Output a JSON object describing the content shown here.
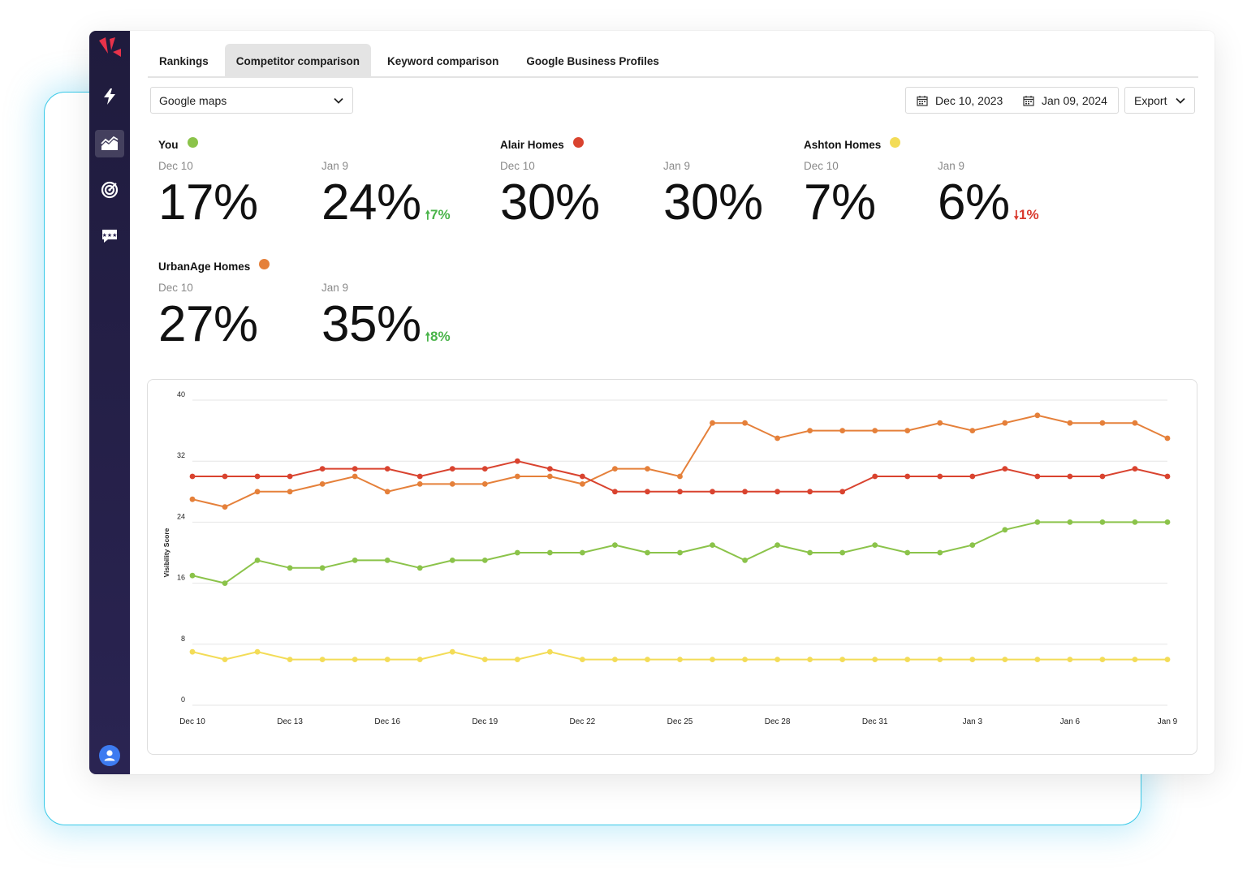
{
  "tabs": [
    {
      "label": "Rankings",
      "active": false
    },
    {
      "label": "Competitor comparison",
      "active": true
    },
    {
      "label": "Keyword comparison",
      "active": false
    },
    {
      "label": "Google Business Profiles",
      "active": false
    }
  ],
  "filters": {
    "source": "Google maps",
    "start_date": "Dec 10, 2023",
    "end_date": "Jan 09, 2024",
    "export_label": "Export"
  },
  "sidebar_icons": [
    "logo-icon",
    "lightning-icon",
    "chart-icon",
    "target-icon",
    "review-icon",
    "user-icon"
  ],
  "competitors": [
    {
      "name": "You",
      "color": "#8bc34a",
      "start_label": "Dec 10",
      "start_value": "17%",
      "end_label": "Jan 9",
      "end_value": "24%",
      "delta": "7%",
      "delta_dir": "up"
    },
    {
      "name": "Alair Homes",
      "color": "#d9432f",
      "start_label": "Dec 10",
      "start_value": "30%",
      "end_label": "Jan 9",
      "end_value": "30%",
      "delta": "",
      "delta_dir": ""
    },
    {
      "name": "Ashton Homes",
      "color": "#f3dc57",
      "start_label": "Dec 10",
      "start_value": "7%",
      "end_label": "Jan 9",
      "end_value": "6%",
      "delta": "1%",
      "delta_dir": "down"
    },
    {
      "name": "UrbanAge Homes",
      "color": "#e5803a",
      "start_label": "Dec 10",
      "start_value": "27%",
      "end_label": "Jan 9",
      "end_value": "35%",
      "delta": "8%",
      "delta_dir": "up"
    }
  ],
  "chart_data": {
    "type": "line",
    "title": "",
    "xlabel": "",
    "ylabel": "Visibility Score",
    "ylim": [
      0,
      40
    ],
    "yticks": [
      0,
      8,
      16,
      24,
      32,
      40
    ],
    "xtick_labels": [
      "Dec 10",
      "Dec 13",
      "Dec 16",
      "Dec 19",
      "Dec 22",
      "Dec 25",
      "Dec 28",
      "Dec 31",
      "Jan 3",
      "Jan 6",
      "Jan 9"
    ],
    "x": [
      "Dec 10",
      "Dec 11",
      "Dec 12",
      "Dec 13",
      "Dec 14",
      "Dec 15",
      "Dec 16",
      "Dec 17",
      "Dec 18",
      "Dec 19",
      "Dec 20",
      "Dec 21",
      "Dec 22",
      "Dec 23",
      "Dec 24",
      "Dec 25",
      "Dec 26",
      "Dec 27",
      "Dec 28",
      "Dec 29",
      "Dec 30",
      "Dec 31",
      "Jan 1",
      "Jan 2",
      "Jan 3",
      "Jan 4",
      "Jan 5",
      "Jan 6",
      "Jan 7",
      "Jan 8",
      "Jan 9"
    ],
    "grid": true,
    "series": [
      {
        "name": "UrbanAge Homes",
        "color": "#e5803a",
        "values": [
          27,
          26,
          28,
          28,
          29,
          30,
          28,
          29,
          29,
          29,
          30,
          30,
          29,
          31,
          31,
          30,
          37,
          37,
          35,
          36,
          36,
          36,
          36,
          37,
          36,
          37,
          38,
          37,
          37,
          37,
          35
        ]
      },
      {
        "name": "Alair Homes",
        "color": "#d9432f",
        "values": [
          30,
          30,
          30,
          30,
          31,
          31,
          31,
          30,
          31,
          31,
          32,
          31,
          30,
          28,
          28,
          28,
          28,
          28,
          28,
          28,
          28,
          30,
          30,
          30,
          30,
          31,
          30,
          30,
          30,
          31,
          30
        ]
      },
      {
        "name": "You",
        "color": "#8bc34a",
        "values": [
          17,
          16,
          19,
          18,
          18,
          19,
          19,
          18,
          19,
          19,
          20,
          20,
          20,
          21,
          20,
          20,
          21,
          19,
          21,
          20,
          20,
          21,
          20,
          20,
          21,
          23,
          24,
          24,
          24,
          24,
          24
        ]
      },
      {
        "name": "Ashton Homes",
        "color": "#f3dc57",
        "values": [
          7,
          6,
          7,
          6,
          6,
          6,
          6,
          6,
          7,
          6,
          6,
          7,
          6,
          6,
          6,
          6,
          6,
          6,
          6,
          6,
          6,
          6,
          6,
          6,
          6,
          6,
          6,
          6,
          6,
          6,
          6
        ]
      }
    ]
  }
}
